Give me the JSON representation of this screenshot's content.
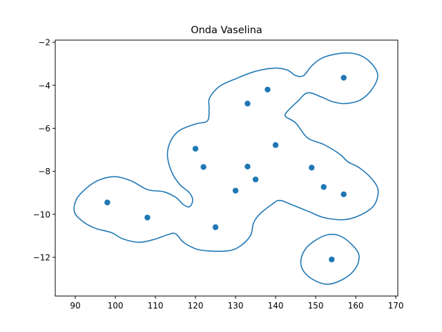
{
  "chart_data": {
    "type": "scatter",
    "title": "Onda Vaselina",
    "xlabel": "",
    "ylabel": "",
    "xlim": [
      85,
      170.5
    ],
    "ylim": [
      -13.8,
      -1.9
    ],
    "xticks": [
      90,
      100,
      110,
      120,
      130,
      140,
      150,
      160,
      170
    ],
    "yticks": [
      -12,
      -10,
      -8,
      -6,
      -4,
      -2
    ],
    "grid": false,
    "colors": {
      "series": "#1f77b4",
      "axes": "#000000"
    },
    "points": [
      {
        "x": 98,
        "y": -9.45
      },
      {
        "x": 108,
        "y": -10.15
      },
      {
        "x": 120,
        "y": -6.95
      },
      {
        "x": 122,
        "y": -7.8
      },
      {
        "x": 125,
        "y": -10.6
      },
      {
        "x": 130,
        "y": -8.9
      },
      {
        "x": 133,
        "y": -4.85
      },
      {
        "x": 133,
        "y": -7.78
      },
      {
        "x": 135,
        "y": -8.38
      },
      {
        "x": 138,
        "y": -4.2
      },
      {
        "x": 140,
        "y": -6.78
      },
      {
        "x": 149,
        "y": -7.83
      },
      {
        "x": 152,
        "y": -8.73
      },
      {
        "x": 154,
        "y": -12.1
      },
      {
        "x": 157,
        "y": -3.65
      },
      {
        "x": 157,
        "y": -9.07
      }
    ],
    "contours": [
      [
        [
          100,
          -8.25
        ],
        [
          104,
          -8.45
        ],
        [
          108,
          -8.85
        ],
        [
          112,
          -8.95
        ],
        [
          115,
          -9.2
        ],
        [
          117,
          -9.55
        ],
        [
          118.5,
          -9.65
        ],
        [
          119.3,
          -9.35
        ],
        [
          118.5,
          -9.0
        ],
        [
          116,
          -8.6
        ],
        [
          114,
          -8.0
        ],
        [
          113,
          -7.25
        ],
        [
          113.8,
          -6.6
        ],
        [
          116,
          -6.1
        ],
        [
          120,
          -5.8
        ],
        [
          123,
          -5.65
        ],
        [
          123.4,
          -5.1
        ],
        [
          123.5,
          -4.6
        ],
        [
          126,
          -4.05
        ],
        [
          130,
          -3.7
        ],
        [
          135,
          -3.35
        ],
        [
          140,
          -3.2
        ],
        [
          143,
          -3.3
        ],
        [
          145,
          -3.55
        ],
        [
          147,
          -3.55
        ],
        [
          149,
          -3.1
        ],
        [
          152,
          -2.7
        ],
        [
          157,
          -2.5
        ],
        [
          161,
          -2.6
        ],
        [
          164,
          -3.0
        ],
        [
          165.5,
          -3.55
        ],
        [
          164,
          -4.2
        ],
        [
          161,
          -4.7
        ],
        [
          157,
          -4.85
        ],
        [
          154,
          -4.75
        ],
        [
          151.5,
          -4.55
        ],
        [
          148,
          -4.35
        ],
        [
          145.5,
          -4.75
        ],
        [
          143,
          -5.2
        ],
        [
          142.5,
          -5.45
        ],
        [
          145,
          -5.75
        ],
        [
          148,
          -6.45
        ],
        [
          152,
          -6.75
        ],
        [
          156,
          -7.2
        ],
        [
          158,
          -7.55
        ],
        [
          161,
          -7.85
        ],
        [
          164,
          -8.35
        ],
        [
          165.6,
          -8.9
        ],
        [
          164.5,
          -9.6
        ],
        [
          161,
          -10.05
        ],
        [
          157,
          -10.25
        ],
        [
          152,
          -10.15
        ],
        [
          148,
          -9.85
        ],
        [
          144,
          -9.55
        ],
        [
          141,
          -9.35
        ],
        [
          139,
          -9.55
        ],
        [
          136,
          -10.0
        ],
        [
          134.5,
          -10.4
        ],
        [
          133.7,
          -11.0
        ],
        [
          131,
          -11.5
        ],
        [
          128,
          -11.7
        ],
        [
          123,
          -11.7
        ],
        [
          120,
          -11.6
        ],
        [
          117,
          -11.3
        ],
        [
          115,
          -10.9
        ],
        [
          113,
          -10.95
        ],
        [
          110,
          -11.15
        ],
        [
          106,
          -11.3
        ],
        [
          102,
          -11.15
        ],
        [
          99,
          -10.85
        ],
        [
          95,
          -10.65
        ],
        [
          92,
          -10.35
        ],
        [
          89.8,
          -9.9
        ],
        [
          90.3,
          -9.3
        ],
        [
          93,
          -8.75
        ],
        [
          96,
          -8.4
        ]
      ],
      [
        [
          150,
          -11.2
        ],
        [
          153,
          -10.95
        ],
        [
          156,
          -11.0
        ],
        [
          159,
          -11.4
        ],
        [
          160.8,
          -11.9
        ],
        [
          160,
          -12.5
        ],
        [
          157,
          -13.0
        ],
        [
          153,
          -13.25
        ],
        [
          149.5,
          -13.05
        ],
        [
          147,
          -12.65
        ],
        [
          146.3,
          -12.15
        ],
        [
          147.5,
          -11.6
        ]
      ]
    ]
  }
}
